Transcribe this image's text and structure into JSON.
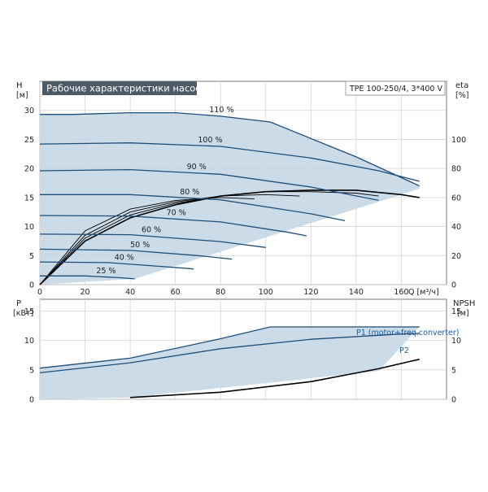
{
  "chart_data": [
    {
      "type": "line",
      "title": "Рабочие характеристики насоса",
      "model": "TPE 100-250/4, 3*400 V",
      "ylabel_left": [
        "H",
        "[м]"
      ],
      "ylabel_right": [
        "eta",
        "[%]"
      ],
      "xlabel": "Q [м³/ч]",
      "xlim": [
        0,
        180
      ],
      "ylim": [
        0,
        35
      ],
      "ylim_right": [
        0,
        140
      ],
      "x_ticks": [
        "0",
        "20",
        "40",
        "60",
        "80",
        "100",
        "120",
        "140",
        "160"
      ],
      "y_ticks": [
        "0",
        "5",
        "10",
        "15",
        "20",
        "25",
        "30"
      ],
      "y_ticks_right": [
        "0",
        "20",
        "40",
        "60",
        "80",
        "100"
      ],
      "grid": true,
      "accent_color": "#1f4e79",
      "area_color": "#c5d7e6",
      "efficiency_color": "#000000",
      "series": [
        {
          "name": "110 %",
          "x": [
            0,
            15,
            40,
            60,
            80,
            102,
            140,
            168
          ],
          "y": [
            29.3,
            29.3,
            29.6,
            29.6,
            29.0,
            28.0,
            22.0,
            17.0
          ]
        },
        {
          "name": "100 %",
          "x": [
            0,
            40,
            80,
            120,
            150,
            168
          ],
          "y": [
            24.2,
            24.4,
            23.8,
            21.8,
            19.6,
            17.8
          ]
        },
        {
          "name": "90 %",
          "x": [
            0,
            40,
            80,
            120,
            150
          ],
          "y": [
            19.6,
            19.8,
            19.0,
            16.8,
            14.5
          ]
        },
        {
          "name": "80 %",
          "x": [
            0,
            40,
            80,
            120,
            135
          ],
          "y": [
            15.5,
            15.5,
            14.6,
            12.2,
            11.0
          ]
        },
        {
          "name": "70 %",
          "x": [
            0,
            40,
            80,
            110,
            118
          ],
          "y": [
            11.9,
            11.8,
            10.8,
            9.0,
            8.4
          ]
        },
        {
          "name": "60 %",
          "x": [
            0,
            40,
            80,
            100
          ],
          "y": [
            8.7,
            8.6,
            7.4,
            6.4
          ]
        },
        {
          "name": "50 %",
          "x": [
            0,
            40,
            70,
            85
          ],
          "y": [
            6.1,
            5.9,
            5.0,
            4.4
          ]
        },
        {
          "name": "40 %",
          "x": [
            0,
            30,
            55,
            68
          ],
          "y": [
            3.9,
            3.8,
            3.1,
            2.7
          ]
        },
        {
          "name": "25 %",
          "x": [
            0,
            20,
            35,
            42
          ],
          "y": [
            1.5,
            1.5,
            1.2,
            1.0
          ]
        }
      ],
      "efficiency_curves": [
        {
          "x": [
            0,
            20,
            40,
            60,
            80,
            100,
            120,
            140,
            160,
            168
          ],
          "y": [
            0,
            30,
            46,
            55,
            61,
            64,
            65,
            65,
            62,
            60
          ]
        },
        {
          "x": [
            0,
            20,
            40,
            60,
            80,
            100,
            120,
            140,
            150
          ],
          "y": [
            0,
            32,
            48,
            56,
            61,
            64,
            64,
            63,
            61
          ]
        },
        {
          "x": [
            0,
            20,
            40,
            60,
            80,
            100,
            115
          ],
          "y": [
            0,
            34,
            50,
            57,
            61,
            62,
            61
          ]
        },
        {
          "x": [
            0,
            20,
            40,
            60,
            80,
            95
          ],
          "y": [
            0,
            37,
            52,
            58,
            60,
            59
          ]
        }
      ]
    },
    {
      "type": "line",
      "ylabel_left": [
        "P",
        "[кВт]"
      ],
      "ylabel_right": [
        "NPSH",
        "[м]"
      ],
      "xlim": [
        0,
        180
      ],
      "ylim": [
        0,
        17
      ],
      "y_ticks": [
        "0",
        "5",
        "10",
        "15"
      ],
      "y_ticks_right": [
        "0",
        "5",
        "10",
        "15"
      ],
      "grid": true,
      "series": [
        {
          "name": "P1 (motor+freq.converter)",
          "x": [
            0,
            40,
            80,
            102,
            140,
            168
          ],
          "y": [
            5.3,
            7.0,
            10.3,
            12.3,
            12.3,
            12.3
          ]
        },
        {
          "name": "P2",
          "x": [
            0,
            40,
            80,
            120,
            160,
            168
          ],
          "y": [
            4.5,
            6.2,
            8.6,
            10.2,
            11.1,
            11.2
          ]
        }
      ],
      "npsh": {
        "x": [
          40,
          80,
          120,
          150,
          168
        ],
        "y": [
          0.3,
          1.2,
          3.0,
          5.2,
          6.8
        ]
      }
    }
  ]
}
